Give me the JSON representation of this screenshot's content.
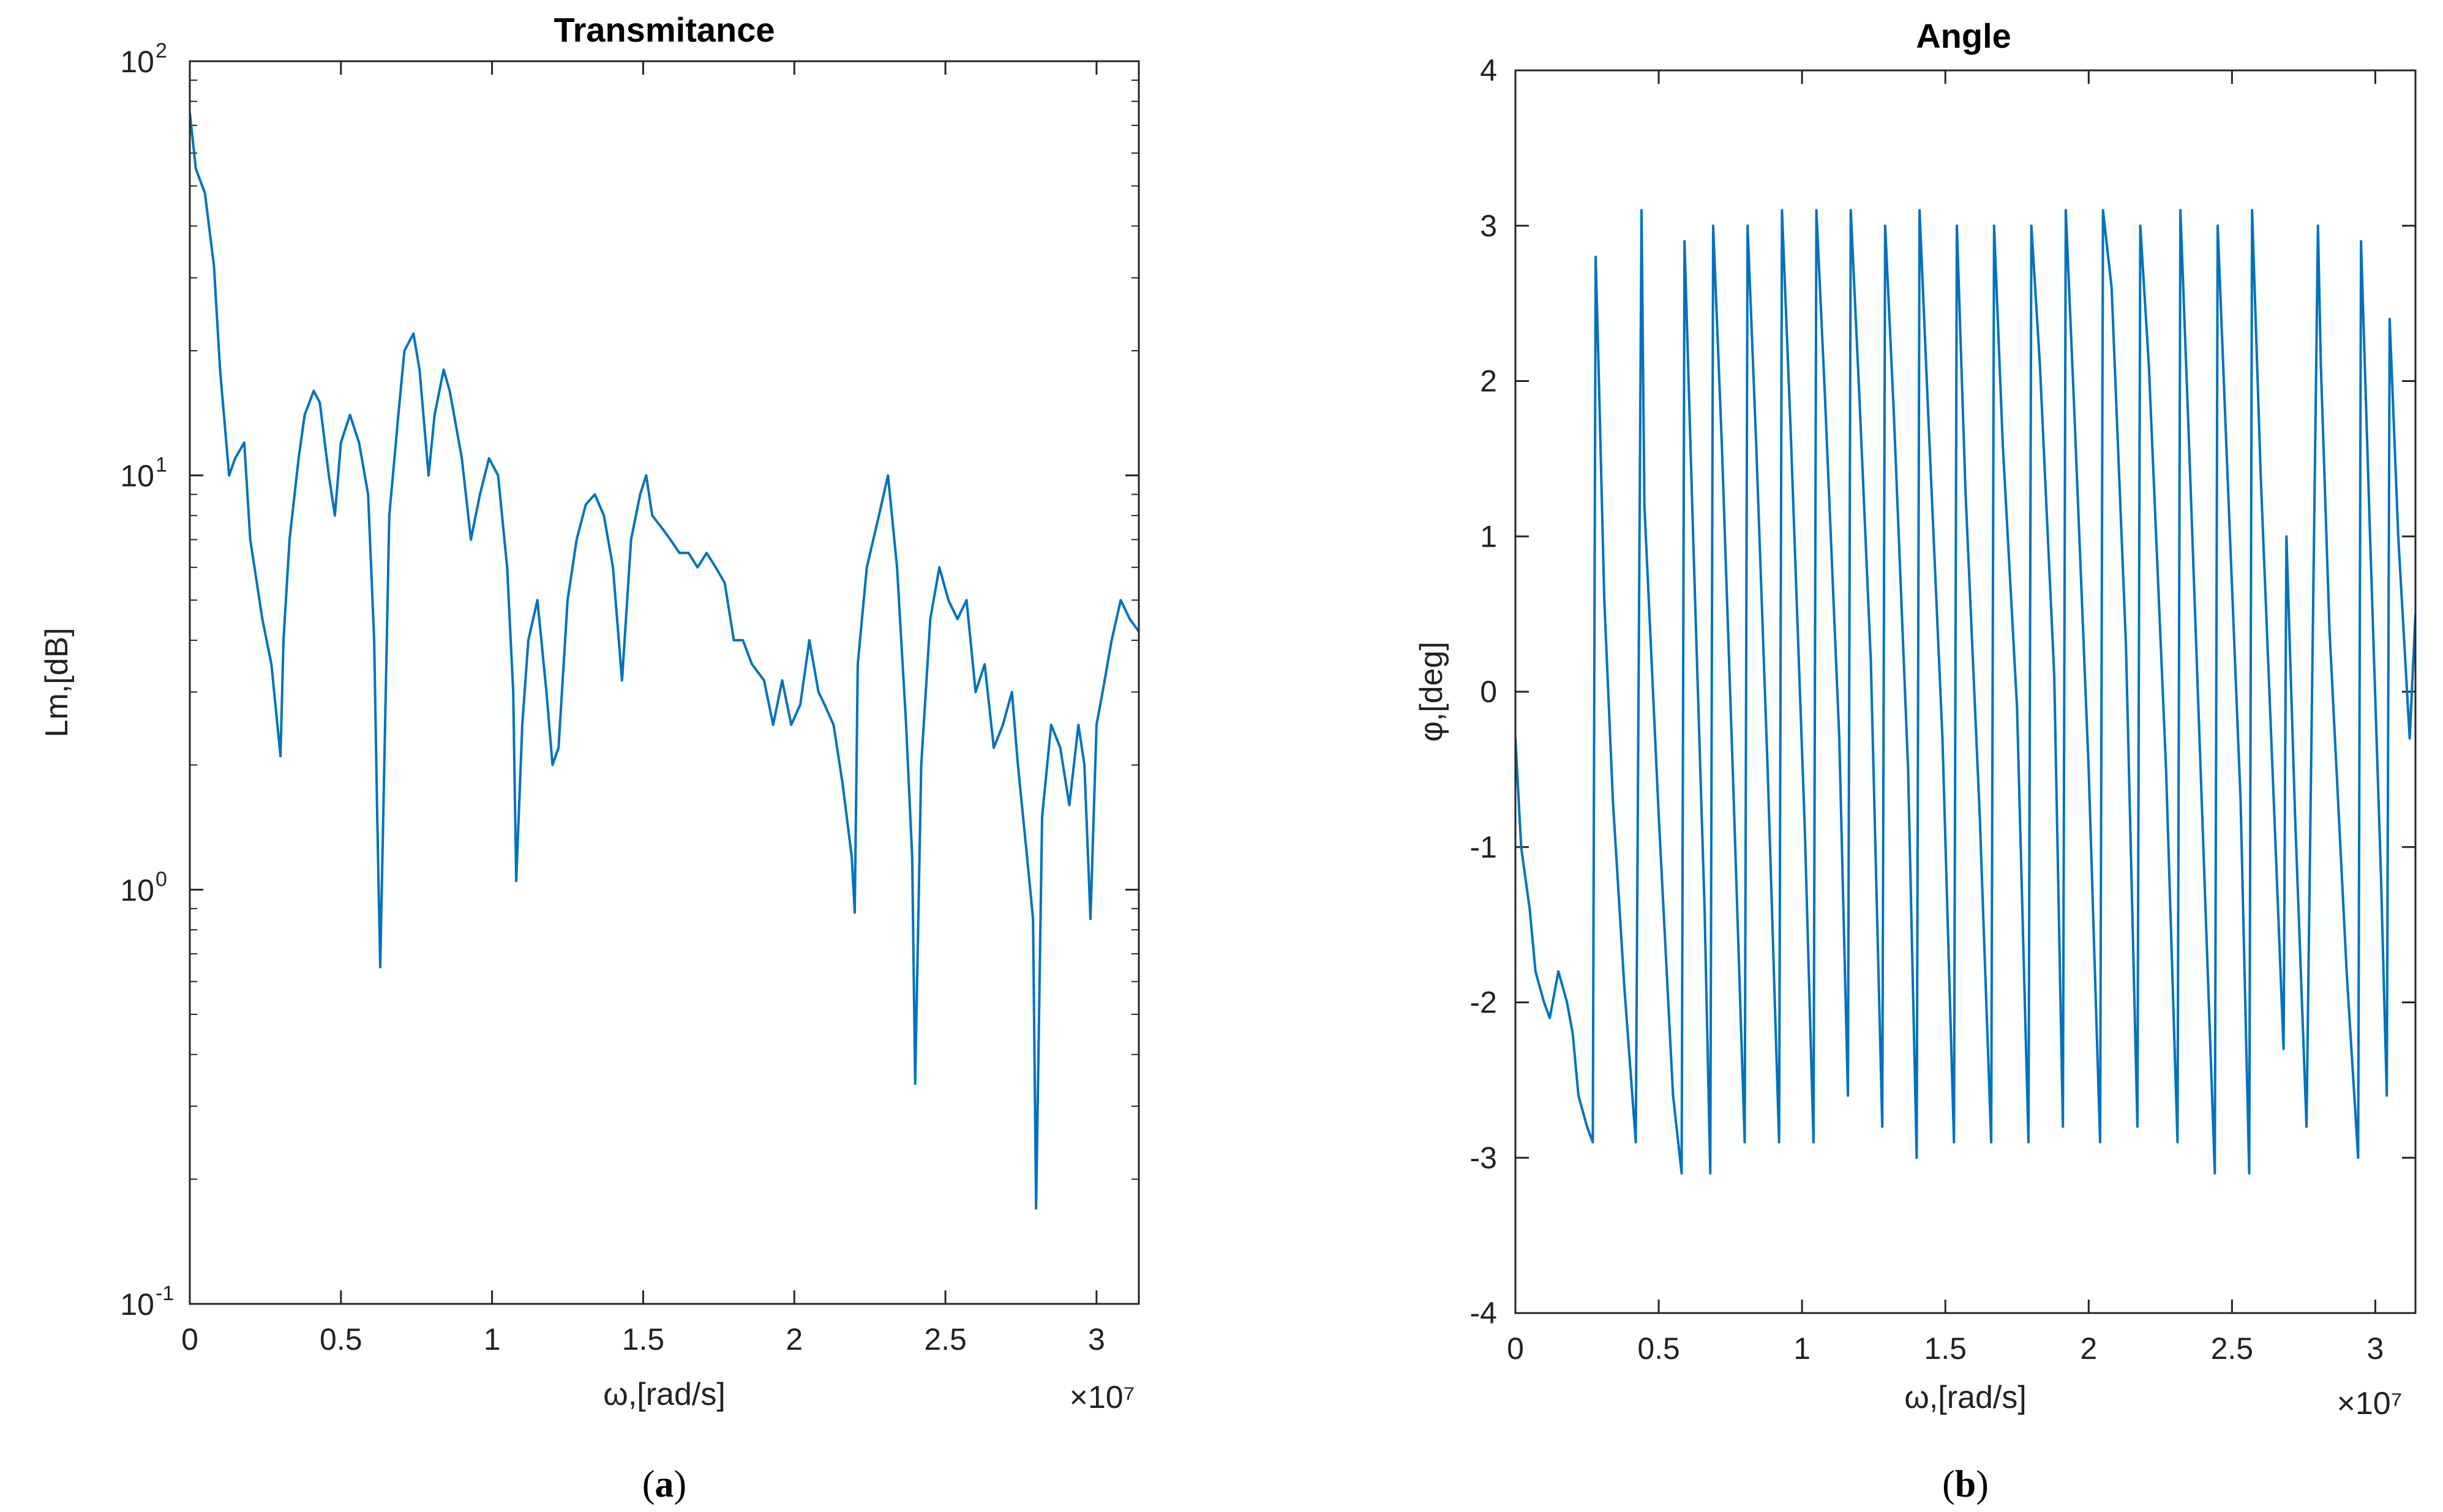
{
  "chart_data": [
    {
      "id": "a",
      "type": "line",
      "title": "Transmitance",
      "xlabel": "ω,[rad/s]",
      "ylabel": "Lm,[dB]",
      "x_multiplier": "×10⁷",
      "xlim": [
        0,
        3.14
      ],
      "ylim": [
        0.1,
        100
      ],
      "yscale": "log",
      "xticks": [
        0,
        0.5,
        1,
        1.5,
        2,
        2.5,
        3
      ],
      "xtick_labels": [
        "0",
        "0.5",
        "1",
        "1.5",
        "2",
        "2.5",
        "3"
      ],
      "yticks": [
        0.1,
        1,
        10,
        100
      ],
      "ytick_labels": [
        {
          "base": "10",
          "exp": "-1"
        },
        {
          "base": "10",
          "exp": "0"
        },
        {
          "base": "10",
          "exp": "1"
        },
        {
          "base": "10",
          "exp": "2"
        }
      ],
      "caption": {
        "open": "(",
        "letter": "a",
        "close": ")"
      },
      "series": [
        {
          "name": "Lm",
          "color": "#0072BD",
          "x": [
            0,
            0.02,
            0.05,
            0.08,
            0.1,
            0.13,
            0.15,
            0.18,
            0.2,
            0.24,
            0.27,
            0.3,
            0.31,
            0.33,
            0.36,
            0.38,
            0.41,
            0.43,
            0.46,
            0.48,
            0.5,
            0.53,
            0.56,
            0.59,
            0.61,
            0.62,
            0.63,
            0.66,
            0.69,
            0.71,
            0.74,
            0.76,
            0.79,
            0.81,
            0.84,
            0.86,
            0.9,
            0.93,
            0.96,
            0.99,
            1.02,
            1.05,
            1.07,
            1.08,
            1.1,
            1.12,
            1.15,
            1.18,
            1.2,
            1.22,
            1.25,
            1.28,
            1.31,
            1.34,
            1.37,
            1.4,
            1.43,
            1.46,
            1.49,
            1.51,
            1.53,
            1.56,
            1.59,
            1.62,
            1.65,
            1.68,
            1.71,
            1.74,
            1.77,
            1.8,
            1.83,
            1.86,
            1.9,
            1.93,
            1.96,
            1.99,
            2.02,
            2.05,
            2.08,
            2.1,
            2.13,
            2.16,
            2.19,
            2.2,
            2.21,
            2.24,
            2.28,
            2.31,
            2.34,
            2.37,
            2.39,
            2.4,
            2.42,
            2.45,
            2.48,
            2.51,
            2.54,
            2.57,
            2.6,
            2.63,
            2.66,
            2.69,
            2.72,
            2.74,
            2.77,
            2.79,
            2.8,
            2.82,
            2.85,
            2.88,
            2.91,
            2.94,
            2.96,
            2.98,
            3.0,
            3.02,
            3.05,
            3.08,
            3.11,
            3.14
          ],
          "y": [
            75,
            55,
            48,
            32,
            18,
            10,
            11,
            12,
            7,
            4.5,
            3.5,
            2.1,
            4.0,
            7,
            11,
            14,
            16,
            15,
            10,
            8,
            12,
            14,
            12,
            9,
            4,
            1.5,
            0.65,
            8,
            14,
            20,
            22,
            18,
            10,
            14,
            18,
            16,
            11,
            7,
            9,
            11,
            10,
            6,
            3,
            1.05,
            2.5,
            4,
            5,
            3,
            2.0,
            2.2,
            5,
            7,
            8.5,
            9,
            8,
            6,
            3.2,
            7,
            9,
            10,
            8,
            7.5,
            7,
            6.5,
            6.5,
            6,
            6.5,
            6,
            5.5,
            4,
            4,
            3.5,
            3.2,
            2.5,
            3.2,
            2.5,
            2.8,
            4,
            3,
            2.8,
            2.5,
            1.8,
            1.2,
            0.88,
            3.5,
            6,
            8,
            10,
            6,
            2.5,
            1.2,
            0.34,
            2,
            4.5,
            6,
            5,
            4.5,
            5,
            3,
            3.5,
            2.2,
            2.5,
            3,
            2.0,
            1.2,
            0.85,
            0.17,
            1.5,
            2.5,
            2.2,
            1.6,
            2.5,
            2.0,
            0.85,
            2.5,
            3.0,
            4,
            5,
            4.5,
            4.2
          ]
        }
      ]
    },
    {
      "id": "b",
      "type": "line",
      "title": "Angle",
      "xlabel": "ω,[rad/s]",
      "ylabel": "φ,[deg]",
      "x_multiplier": "×10⁷",
      "xlim": [
        0,
        3.14
      ],
      "ylim": [
        -4,
        4
      ],
      "yscale": "linear",
      "xticks": [
        0,
        0.5,
        1,
        1.5,
        2,
        2.5,
        3
      ],
      "xtick_labels": [
        "0",
        "0.5",
        "1",
        "1.5",
        "2",
        "2.5",
        "3"
      ],
      "yticks": [
        -4,
        -3,
        -2,
        -1,
        0,
        1,
        2,
        3,
        4
      ],
      "ytick_labels": [
        "-4",
        "-3",
        "-2",
        "-1",
        "0",
        "1",
        "2",
        "3",
        "4"
      ],
      "caption": {
        "open": "(",
        "letter": "b",
        "close": ")"
      },
      "series": [
        {
          "name": "φ",
          "color": "#0072BD",
          "x": [
            0,
            0.02,
            0.05,
            0.07,
            0.1,
            0.12,
            0.15,
            0.18,
            0.2,
            0.22,
            0.25,
            0.27,
            0.28,
            0.29,
            0.31,
            0.34,
            0.38,
            0.42,
            0.44,
            0.45,
            0.5,
            0.55,
            0.58,
            0.59,
            0.62,
            0.66,
            0.68,
            0.69,
            0.72,
            0.76,
            0.8,
            0.81,
            0.84,
            0.88,
            0.92,
            0.93,
            0.96,
            1.01,
            1.04,
            1.05,
            1.08,
            1.13,
            1.16,
            1.17,
            1.2,
            1.24,
            1.28,
            1.29,
            1.32,
            1.37,
            1.4,
            1.41,
            1.44,
            1.49,
            1.53,
            1.54,
            1.57,
            1.62,
            1.66,
            1.67,
            1.7,
            1.75,
            1.79,
            1.8,
            1.83,
            1.88,
            1.91,
            1.92,
            1.95,
            2.0,
            2.04,
            2.05,
            2.08,
            2.13,
            2.17,
            2.18,
            2.21,
            2.27,
            2.31,
            2.32,
            2.35,
            2.4,
            2.44,
            2.45,
            2.48,
            2.53,
            2.56,
            2.57,
            2.6,
            2.65,
            2.68,
            2.69,
            2.72,
            2.76,
            2.8,
            2.81,
            2.84,
            2.9,
            2.94,
            2.95,
            2.98,
            3.02,
            3.04,
            3.05,
            3.08,
            3.12,
            3.14
          ],
          "y": [
            -0.3,
            -1.0,
            -1.4,
            -1.8,
            -2.0,
            -2.1,
            -1.8,
            -2.0,
            -2.2,
            -2.6,
            -2.8,
            -2.9,
            2.8,
            2.1,
            0.6,
            -0.7,
            -1.9,
            -2.9,
            3.1,
            1.2,
            -0.8,
            -2.6,
            -3.1,
            2.9,
            1.0,
            -1.4,
            -3.1,
            3.0,
            1.6,
            -0.6,
            -2.9,
            3.0,
            1.6,
            -0.5,
            -2.9,
            3.1,
            1.7,
            -0.9,
            -2.9,
            3.1,
            1.9,
            -0.3,
            -2.6,
            3.1,
            1.9,
            0.2,
            -2.8,
            3.0,
            1.8,
            -0.5,
            -3.0,
            3.1,
            1.8,
            -0.3,
            -2.9,
            3.0,
            1.3,
            -0.8,
            -2.9,
            3.0,
            1.6,
            -0.1,
            -2.9,
            3.0,
            2.1,
            0.1,
            -2.8,
            3.1,
            1.8,
            -0.5,
            -2.9,
            3.1,
            2.6,
            0.3,
            -2.8,
            3.0,
            2.1,
            -0.5,
            -2.9,
            3.1,
            1.6,
            -1.0,
            -3.1,
            3.0,
            1.6,
            -0.7,
            -3.1,
            3.1,
            1.4,
            -0.9,
            -2.3,
            1.0,
            -0.8,
            -2.8,
            3.0,
            2.1,
            0.4,
            -1.8,
            -3.0,
            2.9,
            1.1,
            -1.2,
            -2.6,
            2.4,
            1.0,
            -0.3,
            0.5
          ]
        }
      ]
    }
  ]
}
